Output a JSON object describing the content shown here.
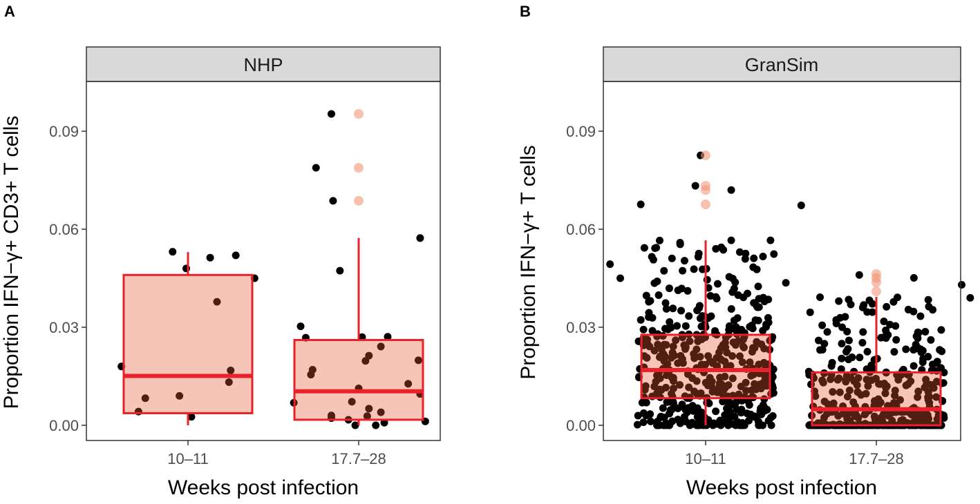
{
  "chart_data": [
    {
      "type": "box+jitter",
      "panel_label": "A",
      "title": "NHP",
      "xlabel": "Weeks post infection",
      "ylabel": "Proportion IFN−γ+ CD3+ T cells",
      "categories": [
        "10–11",
        "17.7–28"
      ],
      "yticks": [
        0.0,
        0.03,
        0.06,
        0.09
      ],
      "ytick_labels": [
        "0.00",
        "0.03",
        "0.06",
        "0.09"
      ],
      "ylim": [
        -0.005,
        0.105
      ],
      "grid": false,
      "boxes": [
        {
          "q1": 0.0037,
          "median": 0.0151,
          "q3": 0.046,
          "whisker_low": 0.0,
          "whisker_high": 0.053,
          "outliers": []
        },
        {
          "q1": 0.0017,
          "median": 0.0104,
          "q3": 0.0261,
          "whisker_low": 0.0,
          "whisker_high": 0.0573,
          "outliers": [
            0.0953,
            0.0788,
            0.0687
          ]
        }
      ],
      "points": [
        [
          [
            -0.09,
            0.0531
          ],
          [
            0.13,
            0.0513
          ],
          [
            0.28,
            0.052
          ],
          [
            -0.01,
            0.048
          ],
          [
            0.39,
            0.045
          ],
          [
            0.17,
            0.0378
          ],
          [
            -0.39,
            0.018
          ],
          [
            0.25,
            0.0168
          ],
          [
            0.24,
            0.0132
          ],
          [
            -0.25,
            0.0083
          ],
          [
            -0.05,
            0.009
          ],
          [
            -0.29,
            0.0042
          ],
          [
            0.02,
            0.0026
          ]
        ],
        [
          [
            -0.16,
            0.0953
          ],
          [
            -0.25,
            0.0788
          ],
          [
            -0.15,
            0.0687
          ],
          [
            0.36,
            0.0573
          ],
          [
            -0.11,
            0.0473
          ],
          [
            -0.34,
            0.0303
          ],
          [
            -0.31,
            0.0268
          ],
          [
            0.02,
            0.027
          ],
          [
            0.17,
            0.0271
          ],
          [
            0.13,
            0.0241
          ],
          [
            0.06,
            0.0213
          ],
          [
            0.04,
            0.0197
          ],
          [
            0.35,
            0.0199
          ],
          [
            -0.27,
            0.017
          ],
          [
            -0.28,
            0.0155
          ],
          [
            0.29,
            0.0127
          ],
          [
            0.0,
            0.0113
          ],
          [
            0.36,
            0.0096
          ],
          [
            -0.38,
            0.0069
          ],
          [
            -0.04,
            0.0072
          ],
          [
            0.06,
            0.0051
          ],
          [
            0.13,
            0.004
          ],
          [
            -0.16,
            0.003
          ],
          [
            -0.16,
            0.0022
          ],
          [
            0.05,
            0.0028
          ],
          [
            -0.06,
            0.0017
          ],
          [
            -0.02,
            0.0
          ],
          [
            0.1,
            0.0
          ],
          [
            0.15,
            0.0008
          ],
          [
            0.39,
            0.0012
          ]
        ]
      ]
    },
    {
      "type": "box+jitter",
      "panel_label": "B",
      "title": "GranSim",
      "xlabel": "Weeks post infection",
      "ylabel": "Proportion IFN−γ+ T cells",
      "categories": [
        "10–11",
        "17.7–28"
      ],
      "yticks": [
        0.0,
        0.03,
        0.06,
        0.09
      ],
      "ytick_labels": [
        "0.00",
        "0.03",
        "0.06",
        "0.09"
      ],
      "ylim": [
        -0.005,
        0.105
      ],
      "grid": false,
      "boxes": [
        {
          "q1": 0.0083,
          "median": 0.0169,
          "q3": 0.0277,
          "whisker_low": 0.0,
          "whisker_high": 0.0566,
          "outliers": [
            0.0826,
            0.0733,
            0.072,
            0.0676
          ]
        },
        {
          "q1": 0.0,
          "median": 0.0049,
          "q3": 0.0162,
          "whisker_low": 0.0,
          "whisker_high": 0.0393,
          "outliers": [
            0.0463,
            0.0451,
            0.0437,
            0.041
          ]
        }
      ],
      "n_points": [
        460,
        420
      ],
      "points": [
        [
          [
            -0.03,
            0.0826
          ],
          [
            -0.06,
            0.0733
          ],
          [
            0.15,
            0.072
          ],
          [
            -0.38,
            0.0676
          ],
          [
            0.56,
            0.0673
          ],
          [
            0.15,
            0.0566
          ],
          [
            0.38,
            0.0566
          ],
          [
            -0.56,
            0.0493
          ],
          [
            0.06,
            0.054
          ],
          [
            0.4,
            0.0524
          ],
          [
            0.2,
            0.053
          ],
          [
            -0.5,
            0.045
          ],
          [
            -0.3,
            0.0435
          ]
        ],
        [
          [
            -0.1,
            0.046
          ],
          [
            0.22,
            0.0451
          ],
          [
            -0.53,
            0.0436
          ],
          [
            0.55,
            0.039
          ],
          [
            -0.22,
            0.038
          ],
          [
            0.5,
            0.043
          ]
        ]
      ]
    }
  ]
}
